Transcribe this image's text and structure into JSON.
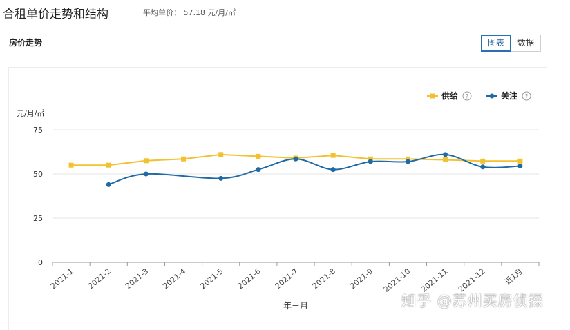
{
  "header": {
    "title": "合租单价走势和结构",
    "avg_label": "平均单价：",
    "avg_value": "57.18 元/月/㎡"
  },
  "section_title": "房价走势",
  "view_buttons": [
    "图表",
    "数据"
  ],
  "watermark": "知乎 @苏州买房侦探",
  "chart_data": {
    "type": "line",
    "ylabel": "元/月/㎡",
    "xlabel": "年－月",
    "ylim": [
      0,
      75
    ],
    "yticks": [
      0,
      25,
      50,
      75
    ],
    "grid": true,
    "legend_position": "top-right",
    "categories": [
      "2021-1",
      "2021-2",
      "2021-3",
      "2021-4",
      "2021-5",
      "2021-6",
      "2021-7",
      "2021-8",
      "2021-9",
      "2021-10",
      "2021-11",
      "2021-12",
      "近1月"
    ],
    "series": [
      {
        "name": "供给",
        "color": "#f2c12e",
        "marker": "square",
        "smooth": false,
        "values": [
          55,
          55,
          57.5,
          58.5,
          61,
          60,
          59,
          60.5,
          58.5,
          58.5,
          58,
          57.3,
          57.3
        ]
      },
      {
        "name": "关注",
        "color": "#1f6aa5",
        "marker": "circle",
        "smooth": true,
        "values": [
          null,
          44,
          50,
          null,
          47.5,
          52.5,
          58.5,
          52.5,
          57,
          57,
          61,
          54,
          54.5
        ]
      }
    ]
  }
}
